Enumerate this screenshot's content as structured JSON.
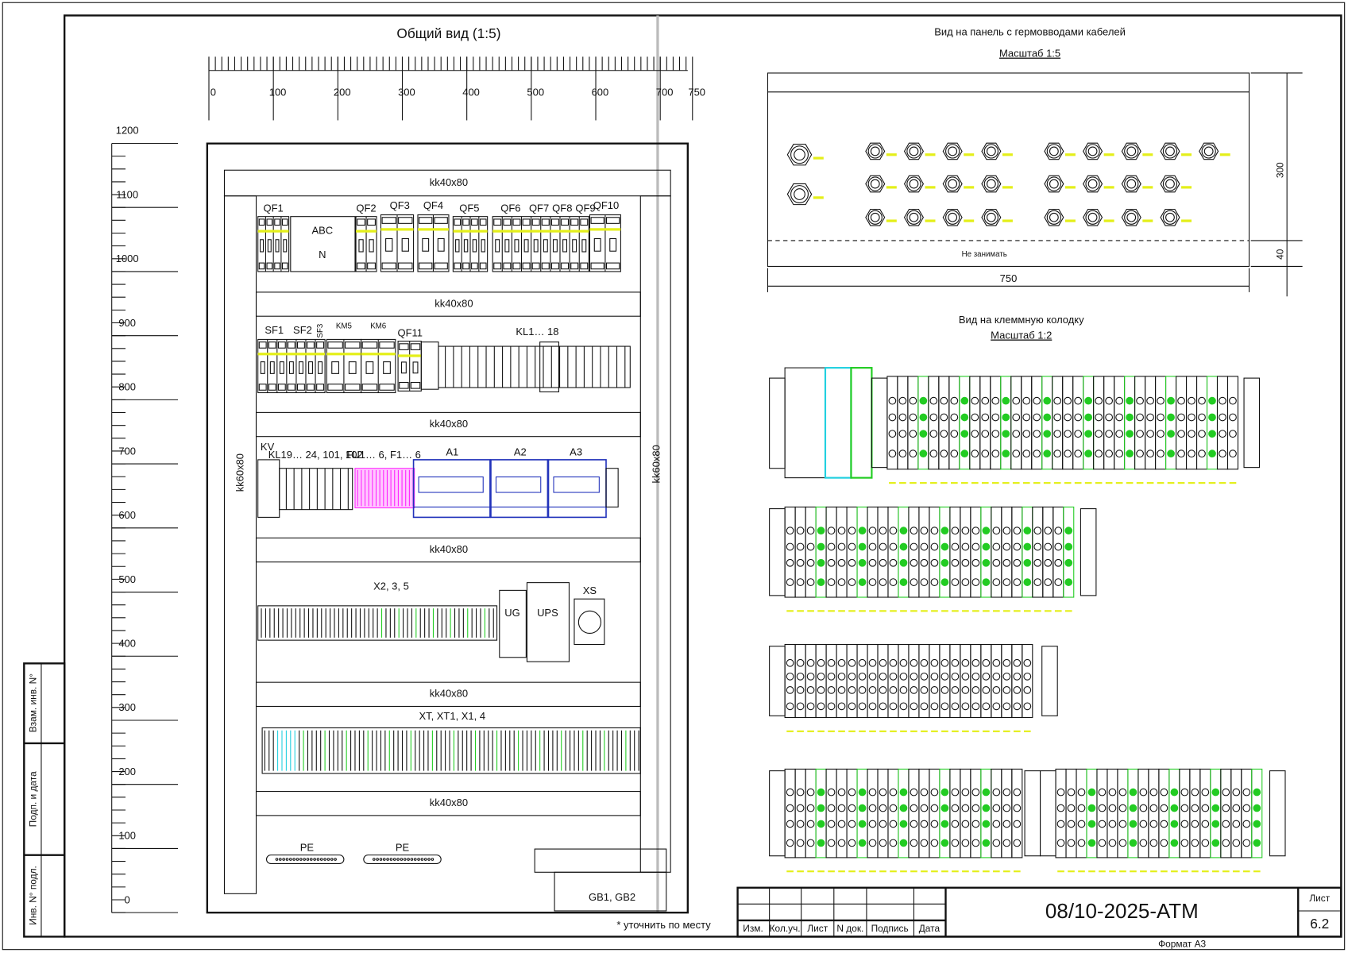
{
  "stamps": [
    "Взам. инв. N°",
    "Подп. и дата",
    "Инв. N° подл."
  ],
  "general_view": {
    "title": "Общий вид (1:5)",
    "h_ruler": [
      0,
      100,
      200,
      300,
      400,
      500,
      600,
      700,
      750
    ],
    "v_ruler": [
      0,
      100,
      200,
      300,
      400,
      500,
      600,
      700,
      800,
      900,
      1000,
      1100,
      1200
    ],
    "ducts_horizontal": [
      "kk40x80",
      "kk40x80",
      "kk40x80",
      "kk40x80",
      "kk40x80",
      "kk40x80"
    ],
    "ducts_vertical": [
      "kk60x80",
      "kk60x80"
    ],
    "row1": [
      "QF1",
      "ABC",
      "N",
      "QF2",
      "QF3",
      "QF4",
      "QF5",
      "QF6",
      "QF7",
      "QF8",
      "QF9",
      "QF10"
    ],
    "row2": [
      "SF1",
      "SF2",
      "SF3",
      "KM5",
      "KM6",
      "QF11",
      "KL1… 18"
    ],
    "row3": [
      "KV",
      "KL19… 24, 101, 102",
      "FU1… 6, F1… 6",
      "A1",
      "A2",
      "A3"
    ],
    "row4": [
      "X2, 3, 5",
      "UG",
      "UPS",
      "XS"
    ],
    "row5": [
      "XT, XT1, X1, 4"
    ],
    "bottom": [
      "PE",
      "PE",
      "GB1, GB2"
    ],
    "note": "* уточнить по месту"
  },
  "gland_view": {
    "title": "Вид на панель с гермовводами кабелей",
    "scale": "Масштаб 1:5",
    "reserved": "Не занимать",
    "dim_height": "300",
    "dim_bottom": "40",
    "dim_width": "750"
  },
  "terminal_view": {
    "title": "Вид на клеммную колодку",
    "scale": "Масштаб 1:2"
  },
  "title_block": {
    "columns": [
      "Изм.",
      "Кол.уч.",
      "Лист",
      "N док.",
      "Подпись",
      "Дата"
    ],
    "document": "08/10-2025-АТМ",
    "sheet_label": "Лист",
    "sheet": "6.2",
    "format": "Формат А3"
  }
}
